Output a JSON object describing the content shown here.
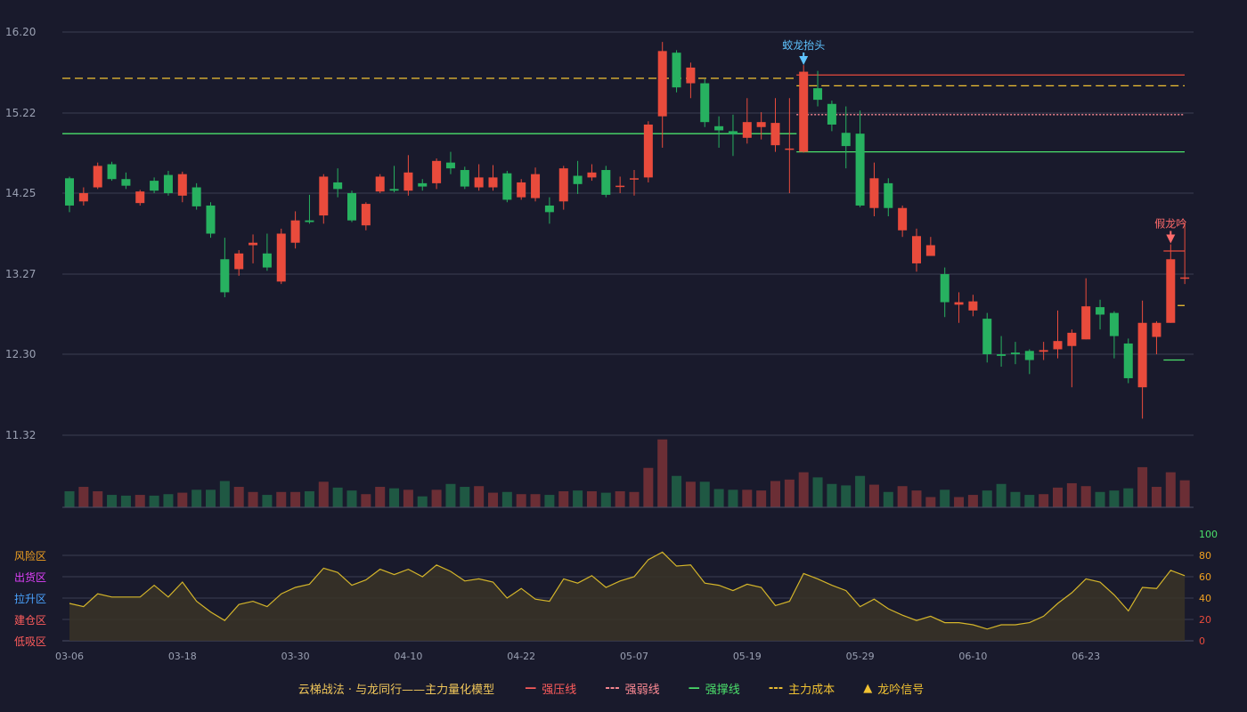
{
  "chart_data": [
    {
      "type": "candlestick",
      "title": "",
      "y_ticks": [
        "16.20",
        "15.22",
        "14.25",
        "13.27",
        "12.30",
        "11.32"
      ],
      "ylim": [
        11.32,
        16.2
      ],
      "x_ticks": [
        "03-06",
        "03-18",
        "03-30",
        "04-10",
        "04-22",
        "05-07",
        "05-19",
        "05-29",
        "06-10",
        "06-23"
      ],
      "x_tick_index": [
        0,
        8,
        16,
        24,
        32,
        40,
        48,
        56,
        64,
        72
      ],
      "candles": [
        [
          14.43,
          14.1,
          14.45,
          14.02
        ],
        [
          14.15,
          14.25,
          14.32,
          14.1
        ],
        [
          14.32,
          14.58,
          14.62,
          14.3
        ],
        [
          14.6,
          14.42,
          14.63,
          14.4
        ],
        [
          14.42,
          14.34,
          14.5,
          14.3
        ],
        [
          14.13,
          14.27,
          14.29,
          14.1
        ],
        [
          14.4,
          14.28,
          14.44,
          14.25
        ],
        [
          14.47,
          14.25,
          14.52,
          14.22
        ],
        [
          14.22,
          14.48,
          14.51,
          14.14
        ],
        [
          14.32,
          14.09,
          14.37,
          14.05
        ],
        [
          14.1,
          13.76,
          14.14,
          13.71
        ],
        [
          13.45,
          13.05,
          13.71,
          12.99
        ],
        [
          13.33,
          13.52,
          13.56,
          13.25
        ],
        [
          13.62,
          13.65,
          13.75,
          13.4
        ],
        [
          13.52,
          13.35,
          13.76,
          13.31
        ],
        [
          13.18,
          13.76,
          13.82,
          13.15
        ],
        [
          13.65,
          13.92,
          14.03,
          13.58
        ],
        [
          13.92,
          13.9,
          14.23,
          13.88
        ],
        [
          13.98,
          14.45,
          14.48,
          13.88
        ],
        [
          14.38,
          14.3,
          14.55,
          14.2
        ],
        [
          14.25,
          13.92,
          14.28,
          13.9
        ],
        [
          13.86,
          14.12,
          14.14,
          13.8
        ],
        [
          14.27,
          14.45,
          14.48,
          14.25
        ],
        [
          14.3,
          14.28,
          14.58,
          14.26
        ],
        [
          14.28,
          14.5,
          14.71,
          14.22
        ],
        [
          14.37,
          14.33,
          14.42,
          14.28
        ],
        [
          14.37,
          14.64,
          14.67,
          14.3
        ],
        [
          14.62,
          14.55,
          14.75,
          14.48
        ],
        [
          14.53,
          14.33,
          14.57,
          14.3
        ],
        [
          14.32,
          14.44,
          14.6,
          14.28
        ],
        [
          14.32,
          14.44,
          14.59,
          14.28
        ],
        [
          14.49,
          14.17,
          14.52,
          14.14
        ],
        [
          14.2,
          14.38,
          14.42,
          14.17
        ],
        [
          14.19,
          14.48,
          14.56,
          14.15
        ],
        [
          14.1,
          14.02,
          14.2,
          13.88
        ],
        [
          14.15,
          14.55,
          14.58,
          14.05
        ],
        [
          14.46,
          14.36,
          14.64,
          14.24
        ],
        [
          14.44,
          14.5,
          14.6,
          14.4
        ],
        [
          14.53,
          14.23,
          14.58,
          14.2
        ],
        [
          14.34,
          14.34,
          14.45,
          14.25
        ],
        [
          14.43,
          14.43,
          14.53,
          14.22
        ],
        [
          14.44,
          15.08,
          15.12,
          14.38
        ],
        [
          15.18,
          15.97,
          16.08,
          14.8
        ],
        [
          15.95,
          15.53,
          15.98,
          15.47
        ],
        [
          15.58,
          15.77,
          15.83,
          15.4
        ],
        [
          15.58,
          15.11,
          15.63,
          15.05
        ],
        [
          15.06,
          15.01,
          15.18,
          14.8
        ],
        [
          15.0,
          14.96,
          15.2,
          14.7
        ],
        [
          14.92,
          15.11,
          15.4,
          14.85
        ],
        [
          15.05,
          15.11,
          15.23,
          14.9
        ],
        [
          14.83,
          15.1,
          15.4,
          14.75
        ],
        [
          14.78,
          14.79,
          15.4,
          14.25
        ],
        [
          14.75,
          15.72,
          15.8,
          14.74
        ],
        [
          15.52,
          15.38,
          15.73,
          15.3
        ],
        [
          15.33,
          15.08,
          15.37,
          15.0
        ],
        [
          14.98,
          14.82,
          15.3,
          14.55
        ],
        [
          14.97,
          14.1,
          15.25,
          14.08
        ],
        [
          14.07,
          14.43,
          14.62,
          13.97
        ],
        [
          14.37,
          14.07,
          14.43,
          13.97
        ],
        [
          13.8,
          14.07,
          14.1,
          13.72
        ],
        [
          13.4,
          13.73,
          13.82,
          13.3
        ],
        [
          13.49,
          13.62,
          13.72,
          13.56
        ],
        [
          13.27,
          12.93,
          13.35,
          12.75
        ],
        [
          12.9,
          12.93,
          13.05,
          12.68
        ],
        [
          12.83,
          12.94,
          13.02,
          12.76
        ],
        [
          12.73,
          12.3,
          12.8,
          12.2
        ],
        [
          12.3,
          12.28,
          12.52,
          12.15
        ],
        [
          12.32,
          12.3,
          12.45,
          12.18
        ],
        [
          12.34,
          12.23,
          12.36,
          12.06
        ],
        [
          12.33,
          12.35,
          12.45,
          12.23
        ],
        [
          12.36,
          12.46,
          12.83,
          12.25
        ],
        [
          12.4,
          12.56,
          12.6,
          11.9
        ],
        [
          12.48,
          12.88,
          13.22,
          12.48
        ],
        [
          12.87,
          12.78,
          12.96,
          12.6
        ],
        [
          12.8,
          12.52,
          12.82,
          12.25
        ],
        [
          12.43,
          12.01,
          12.49,
          11.95
        ],
        [
          11.9,
          12.68,
          12.95,
          11.52
        ],
        [
          12.51,
          12.68,
          12.7,
          12.3
        ],
        [
          12.68,
          13.45,
          13.63,
          12.68
        ],
        [
          13.23,
          13.23,
          13.9,
          13.15
        ]
      ],
      "volume": [
        22,
        28,
        22,
        17,
        16,
        17,
        16,
        18,
        20,
        24,
        24,
        36,
        28,
        21,
        17,
        21,
        21,
        22,
        35,
        27,
        23,
        18,
        28,
        26,
        24,
        15,
        24,
        32,
        28,
        29,
        20,
        21,
        18,
        18,
        17,
        22,
        23,
        22,
        20,
        22,
        21,
        54,
        93,
        43,
        35,
        35,
        25,
        24,
        24,
        23,
        36,
        38,
        48,
        41,
        32,
        30,
        43,
        31,
        21,
        29,
        23,
        14,
        24,
        14,
        17,
        23,
        32,
        21,
        17,
        18,
        27,
        33,
        29,
        21,
        23,
        26,
        55,
        28,
        48,
        37
      ],
      "volume_max": 100,
      "lines": [
        {
          "name": "强压线",
          "color": "#e94b3c",
          "style": "solid",
          "value": 15.68,
          "from": 52,
          "to": 79
        },
        {
          "name": "强弱线",
          "color": "#ff8b95",
          "style": "dotted",
          "value": 15.2,
          "from": 52,
          "to": 79
        },
        {
          "name": "强撑线",
          "color": "#4be06b",
          "style": "solid",
          "value": 14.97,
          "from": 0,
          "to": 51
        },
        {
          "name": "强撑线",
          "color": "#4be06b",
          "style": "solid",
          "value": 14.75,
          "from": 52,
          "to": 79
        },
        {
          "name": "主力成本",
          "color": "#f1c232",
          "style": "dashed",
          "value": 15.64,
          "from": 0,
          "to": 51
        },
        {
          "name": "主力成本",
          "color": "#f1c232",
          "style": "dashed",
          "value": 15.55,
          "from": 52,
          "to": 79
        },
        {
          "name": "强压线",
          "color": "#e94b3c",
          "style": "solid",
          "value": 13.55,
          "from": 78,
          "to": 79
        },
        {
          "name": "强撑线",
          "color": "#4be06b",
          "style": "solid",
          "value": 12.23,
          "from": 78,
          "to": 79
        },
        {
          "name": "主力成本",
          "color": "#f1c232",
          "style": "dashed",
          "value": 12.89,
          "from": 79,
          "to": 79
        }
      ],
      "signals": [
        {
          "index": 52,
          "text": "蛟龙抬头",
          "color": "#5fc4ff",
          "value": 15.78
        },
        {
          "index": 78,
          "text": "假龙吟",
          "color": "#ff6b6b",
          "value": 13.62
        }
      ]
    },
    {
      "type": "area",
      "ylim": [
        0,
        100
      ],
      "y_ticks": [
        "100",
        "80",
        "60",
        "40",
        "20",
        "0"
      ],
      "zones": [
        {
          "label": "风险区",
          "color": "#f0a020"
        },
        {
          "label": "出货区",
          "color": "#e040fb"
        },
        {
          "label": "拉升区",
          "color": "#4aa3ff"
        },
        {
          "label": "建仓区",
          "color": "#ff5c5c"
        },
        {
          "label": "低吸区",
          "color": "#ff5c5c"
        }
      ],
      "values": [
        35,
        32,
        44,
        41,
        41,
        41,
        52,
        41,
        55,
        37,
        27,
        19,
        34,
        37,
        32,
        44,
        50,
        53,
        68,
        64,
        52,
        57,
        67,
        62,
        67,
        60,
        71,
        65,
        56,
        58,
        55,
        40,
        49,
        39,
        37,
        58,
        54,
        61,
        50,
        56,
        60,
        76,
        83,
        70,
        71,
        54,
        52,
        47,
        53,
        50,
        33,
        37,
        63,
        58,
        52,
        47,
        32,
        39,
        30,
        24,
        19,
        23,
        17,
        17,
        15,
        11,
        15,
        15,
        17,
        23,
        35,
        45,
        58,
        55,
        43,
        28,
        50,
        49,
        66,
        61
      ],
      "line_color": "#d4b52a"
    }
  ],
  "legend": {
    "title": "云梯战法 · 与龙同行——主力量化模型",
    "items": [
      {
        "mark": "—",
        "label": "强压线",
        "color": "#ff5c5c"
      },
      {
        "mark": "---",
        "label": "强弱线",
        "color": "#ff8b95"
      },
      {
        "mark": "—",
        "label": "强撑线",
        "color": "#4be06b"
      },
      {
        "mark": "---",
        "label": "主力成本",
        "color": "#f1c232"
      },
      {
        "mark": "▲",
        "label": "龙吟信号",
        "color": "#f1c232"
      }
    ]
  },
  "colors": {
    "up": "#e94b3c",
    "down": "#27b160",
    "up_vol": "#6b2e35",
    "down_vol": "#1f5843",
    "grid": "#3a3d52",
    "axis_text": "#9aa0b2",
    "background": "#191a2c"
  }
}
